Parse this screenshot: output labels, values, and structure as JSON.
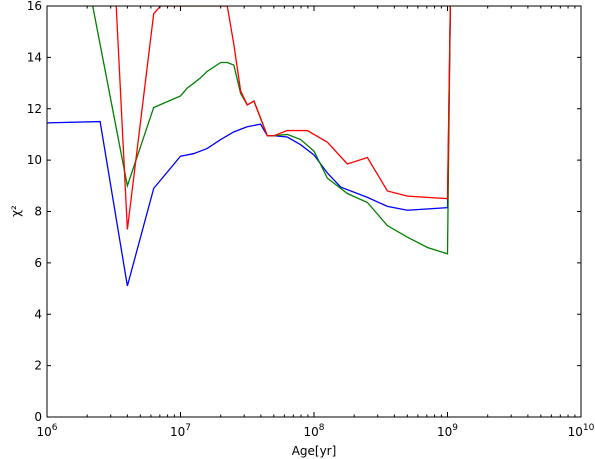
{
  "chart_data": {
    "type": "line",
    "xlabel": "Age[yr]",
    "ylabel": "χ²",
    "xscale": "log",
    "xlim": [
      1000000,
      10000000000
    ],
    "ylim": [
      0,
      16
    ],
    "grid": false,
    "x_tick_labels": [
      {
        "value": 1000000,
        "base": "10",
        "exp": "6"
      },
      {
        "value": 10000000,
        "base": "10",
        "exp": "7"
      },
      {
        "value": 100000000,
        "base": "10",
        "exp": "8"
      },
      {
        "value": 1000000000,
        "base": "10",
        "exp": "9"
      },
      {
        "value": 10000000000,
        "base": "10",
        "exp": "10"
      }
    ],
    "y_ticks": [
      0,
      2,
      4,
      6,
      8,
      10,
      12,
      14,
      16
    ],
    "series": [
      {
        "color": "#0000ff",
        "points": [
          [
            1000000,
            11.45
          ],
          [
            2500000,
            11.5
          ],
          [
            4000000,
            5.1
          ],
          [
            6300000,
            8.9
          ],
          [
            10000000,
            10.15
          ],
          [
            12500000,
            10.25
          ],
          [
            15800000,
            10.45
          ],
          [
            20000000,
            10.8
          ],
          [
            25100000,
            11.1
          ],
          [
            31600000,
            11.3
          ],
          [
            39800000,
            11.4
          ],
          [
            44700000,
            10.95
          ],
          [
            50100000,
            10.95
          ],
          [
            63100000,
            10.9
          ],
          [
            79400000,
            10.6
          ],
          [
            100000000,
            10.2
          ],
          [
            125900000,
            9.5
          ],
          [
            158500000,
            8.95
          ],
          [
            251200000,
            8.55
          ],
          [
            354800000,
            8.2
          ],
          [
            501200000,
            8.05
          ],
          [
            1000000000,
            8.15
          ],
          [
            1050000000,
            16.0
          ]
        ]
      },
      {
        "color": "#008000",
        "points": [
          [
            2200000,
            16.0
          ],
          [
            4000000,
            9.0
          ],
          [
            6300000,
            12.05
          ],
          [
            10000000,
            12.5
          ],
          [
            11200000,
            12.8
          ],
          [
            12600000,
            13.0
          ],
          [
            14100000,
            13.2
          ],
          [
            15800000,
            13.45
          ],
          [
            20000000,
            13.8
          ],
          [
            22400000,
            13.8
          ],
          [
            25100000,
            13.7
          ],
          [
            28200000,
            12.6
          ],
          [
            31600000,
            12.15
          ],
          [
            35500000,
            12.3
          ],
          [
            44700000,
            10.95
          ],
          [
            50100000,
            10.95
          ],
          [
            63100000,
            11.0
          ],
          [
            79400000,
            10.8
          ],
          [
            100000000,
            10.35
          ],
          [
            125900000,
            9.3
          ],
          [
            177800000,
            8.7
          ],
          [
            251200000,
            8.35
          ],
          [
            354800000,
            7.45
          ],
          [
            501200000,
            7.0
          ],
          [
            707900000,
            6.6
          ],
          [
            1000000000,
            6.35
          ],
          [
            1050000000,
            16.0
          ]
        ]
      },
      {
        "color": "#ff0000",
        "points": [
          [
            3300000,
            16.0
          ],
          [
            4000000,
            7.3
          ],
          [
            6300000,
            15.7
          ],
          [
            7100000,
            16.0
          ],
          [
            22400000,
            16.0
          ],
          [
            25100000,
            14.5
          ],
          [
            28200000,
            12.7
          ],
          [
            31600000,
            12.15
          ],
          [
            35500000,
            12.3
          ],
          [
            44700000,
            10.95
          ],
          [
            50100000,
            10.95
          ],
          [
            63100000,
            11.15
          ],
          [
            79400000,
            11.15
          ],
          [
            89100000,
            11.15
          ],
          [
            125900000,
            10.7
          ],
          [
            177800000,
            9.85
          ],
          [
            251200000,
            10.1
          ],
          [
            354800000,
            8.8
          ],
          [
            501200000,
            8.6
          ],
          [
            1000000000,
            8.5
          ],
          [
            1050000000,
            16.0
          ]
        ]
      }
    ]
  }
}
